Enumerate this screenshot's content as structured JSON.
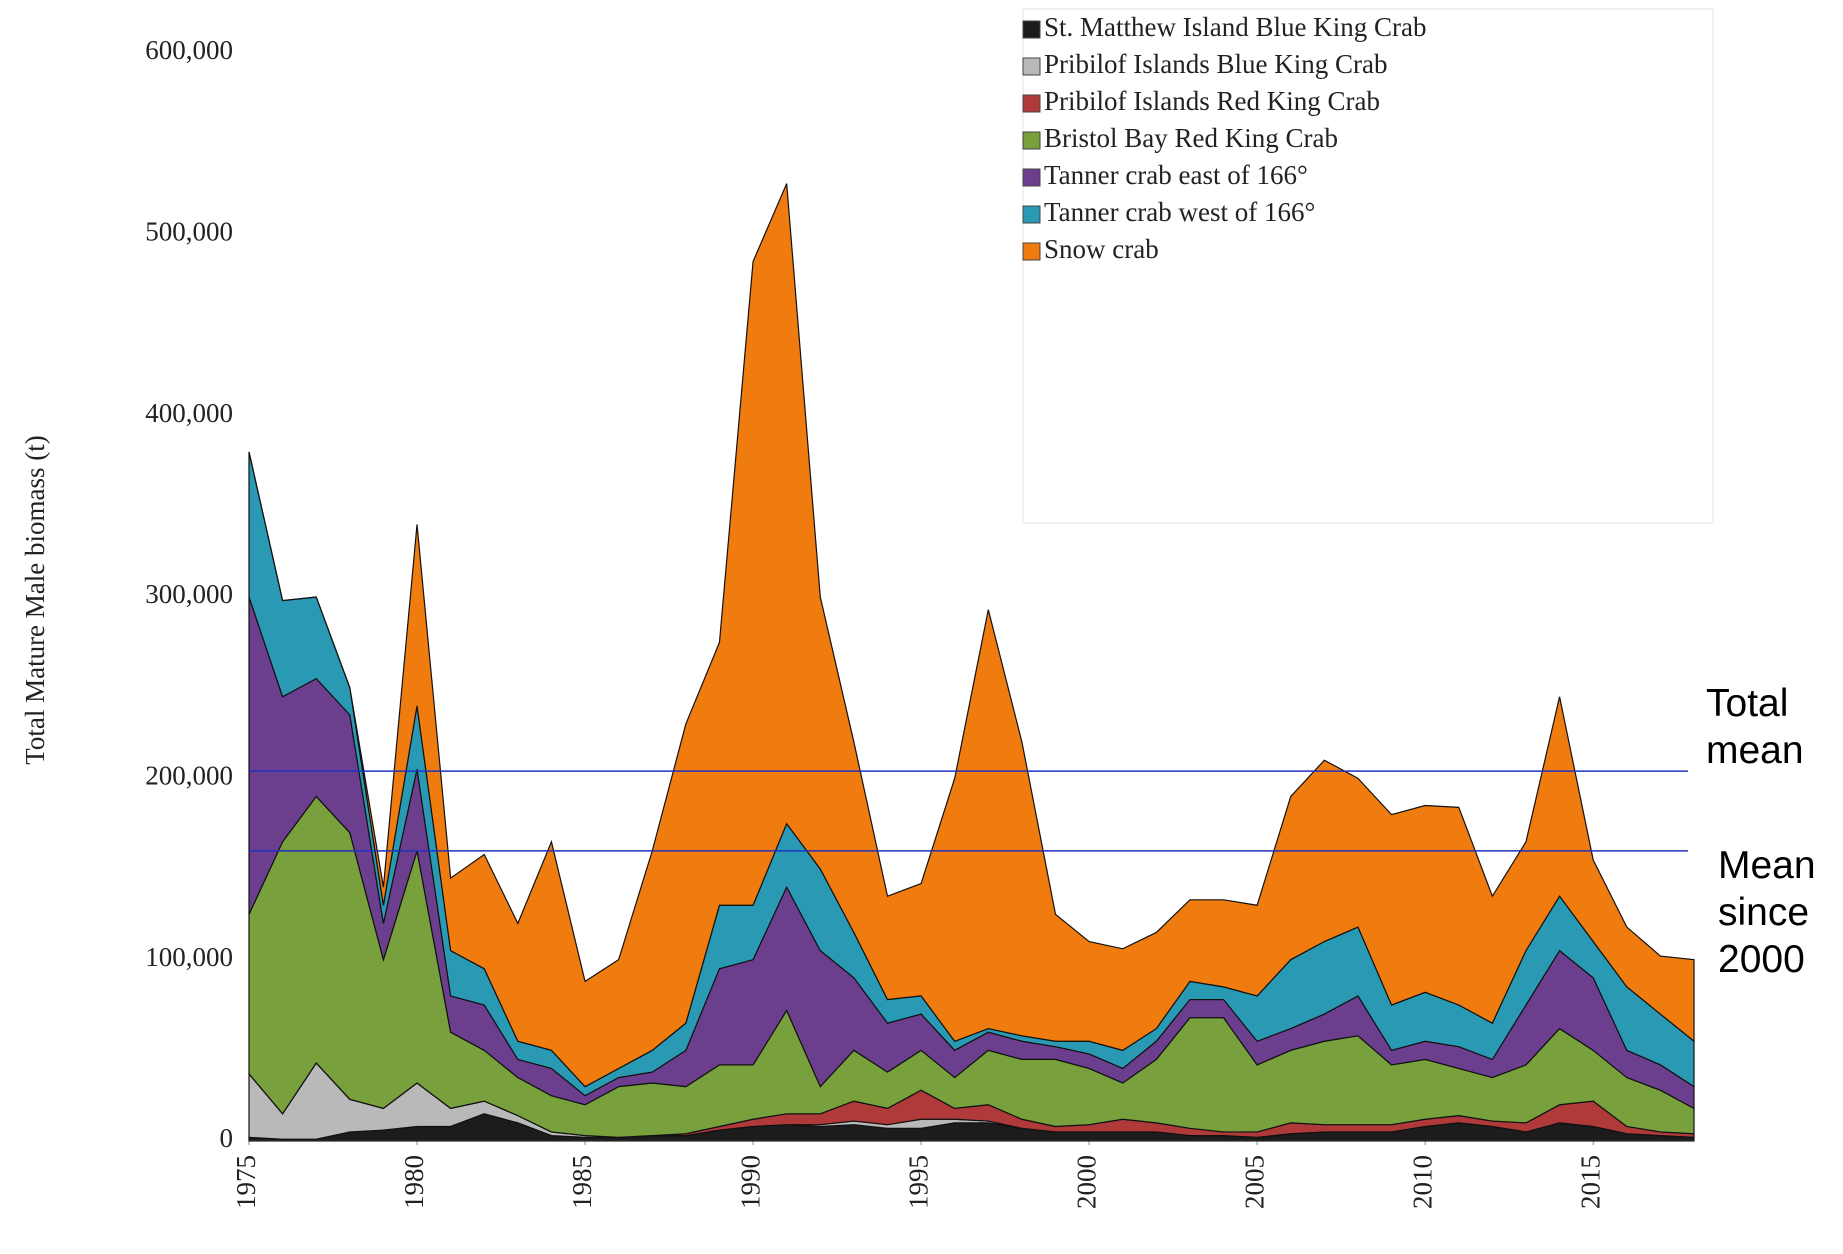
{
  "chart_data": {
    "type": "stacked_area",
    "y_label": "Total Mature Male biomass (t)",
    "x": [
      1975,
      1976,
      1977,
      1978,
      1979,
      1980,
      1981,
      1982,
      1983,
      1984,
      1985,
      1986,
      1987,
      1988,
      1989,
      1990,
      1991,
      1992,
      1993,
      1994,
      1995,
      1996,
      1997,
      1998,
      1999,
      2000,
      2001,
      2002,
      2003,
      2004,
      2005,
      2006,
      2007,
      2008,
      2009,
      2010,
      2011,
      2012,
      2013,
      2014,
      2015,
      2016,
      2017,
      2018
    ],
    "xlim": [
      1975,
      2018
    ],
    "xticks": [
      1975,
      1980,
      1985,
      1990,
      1995,
      2000,
      2005,
      2010,
      2015
    ],
    "ylim": [
      0,
      600000
    ],
    "yticks": [
      0,
      {
        "value": 100000,
        "label": "100,000"
      },
      {
        "value": 200000,
        "label": "200,000"
      },
      {
        "value": 300000,
        "label": "300,000"
      },
      {
        "value": 400000,
        "label": "400,000"
      },
      {
        "value": 500000,
        "label": "500,000"
      },
      {
        "value": 600000,
        "label": "600,000"
      }
    ],
    "series": [
      {
        "name": "St. Matthew Island Blue King Crab",
        "color": "#1c1c1c",
        "values": [
          2000,
          1000,
          1000,
          5000,
          6000,
          8000,
          8000,
          15000,
          10000,
          3000,
          2000,
          2000,
          3000,
          3000,
          6000,
          8000,
          9000,
          8000,
          9000,
          7000,
          7000,
          10000,
          10000,
          7000,
          5000,
          5000,
          5000,
          5000,
          3000,
          3000,
          2000,
          4000,
          5000,
          5000,
          5000,
          8000,
          10000,
          8000,
          5000,
          10000,
          8000,
          4000,
          3000,
          2000
        ]
      },
      {
        "name": "Pribilof Islands Blue King Crab",
        "color": "#b9b9b9",
        "values": [
          35000,
          14000,
          42000,
          18000,
          12000,
          24000,
          10000,
          7000,
          4000,
          2000,
          1000,
          0,
          0,
          0,
          0,
          0,
          0,
          1000,
          2000,
          2000,
          5000,
          2000,
          1000,
          0,
          0,
          0,
          0,
          0,
          0,
          0,
          0,
          0,
          0,
          0,
          0,
          0,
          0,
          0,
          0,
          0,
          0,
          0,
          0,
          0
        ]
      },
      {
        "name": "Pribilof Islands Red King Crab",
        "color": "#b03a3a",
        "values": [
          0,
          0,
          0,
          0,
          0,
          0,
          0,
          0,
          0,
          0,
          0,
          0,
          0,
          1000,
          2000,
          4000,
          6000,
          6000,
          11000,
          9000,
          16000,
          6000,
          9000,
          5000,
          3000,
          4000,
          7000,
          5000,
          4000,
          2000,
          3000,
          6000,
          4000,
          4000,
          4000,
          4000,
          4000,
          3000,
          5000,
          10000,
          14000,
          4000,
          2000,
          2000
        ]
      },
      {
        "name": "Bristol Bay Red King Crab",
        "color": "#78a03c",
        "values": [
          88000,
          150000,
          147000,
          147000,
          82000,
          128000,
          42000,
          28000,
          21000,
          20000,
          17000,
          28000,
          29000,
          26000,
          34000,
          30000,
          57000,
          15000,
          28000,
          20000,
          22000,
          17000,
          30000,
          33000,
          37000,
          31000,
          20000,
          35000,
          61000,
          63000,
          37000,
          40000,
          46000,
          49000,
          33000,
          33000,
          26000,
          24000,
          32000,
          42000,
          28000,
          27000,
          23000,
          14000
        ]
      },
      {
        "name": "Tanner crab east of 166°",
        "color": "#6b3f8e",
        "values": [
          175000,
          80000,
          65000,
          65000,
          20000,
          45000,
          20000,
          25000,
          10000,
          15000,
          5000,
          5000,
          6000,
          20000,
          53000,
          58000,
          68000,
          75000,
          40000,
          27000,
          20000,
          15000,
          10000,
          10000,
          7000,
          8000,
          8000,
          10000,
          10000,
          10000,
          13000,
          12000,
          15000,
          22000,
          8000,
          10000,
          12000,
          10000,
          33000,
          43000,
          40000,
          15000,
          14000,
          12000
        ]
      },
      {
        "name": "Tanner crab west of 166°",
        "color": "#2a9ab4",
        "values": [
          80000,
          53000,
          45000,
          15000,
          10000,
          35000,
          25000,
          20000,
          10000,
          10000,
          5000,
          5000,
          12000,
          15000,
          35000,
          30000,
          35000,
          45000,
          25000,
          13000,
          10000,
          5000,
          2000,
          3000,
          3000,
          7000,
          10000,
          7000,
          10000,
          7000,
          25000,
          38000,
          40000,
          38000,
          25000,
          27000,
          23000,
          20000,
          30000,
          30000,
          20000,
          35000,
          28000,
          25000
        ]
      },
      {
        "name": "Snow crab",
        "color": "#f07c10",
        "values": [
          0,
          0,
          0,
          0,
          10000,
          100000,
          40000,
          63000,
          65000,
          115000,
          58000,
          60000,
          110000,
          165000,
          145000,
          355000,
          353000,
          150000,
          105000,
          57000,
          62000,
          145000,
          231000,
          162000,
          70000,
          55000,
          56000,
          53000,
          45000,
          48000,
          50000,
          90000,
          100000,
          82000,
          105000,
          103000,
          109000,
          70000,
          60000,
          110000,
          45000,
          33000,
          32000,
          45000
        ]
      }
    ],
    "reference_lines": [
      {
        "label": "Total mean",
        "value": 204000,
        "color": "#2030c0"
      },
      {
        "label": "Mean since 2000",
        "value": 160000,
        "color": "#2030c0"
      }
    ]
  }
}
